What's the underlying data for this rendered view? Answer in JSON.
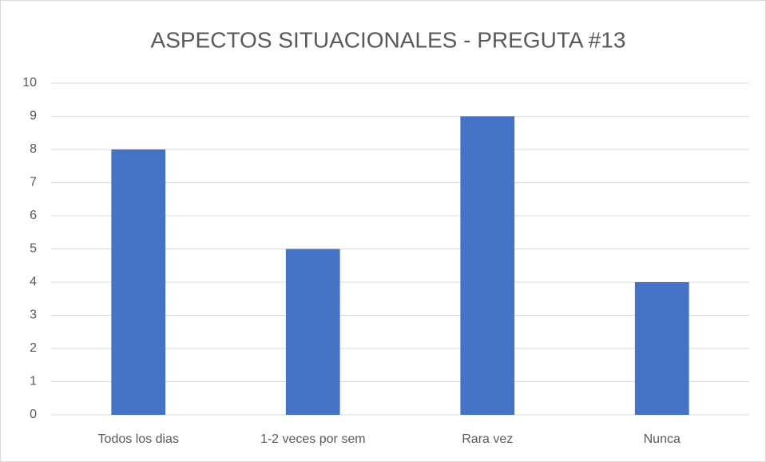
{
  "chart_data": {
    "type": "bar",
    "title": "ASPECTOS SITUACIONALES - PREGUTA #13",
    "categories": [
      "Todos los dias",
      "1-2 veces por sem",
      "Rara vez",
      "Nunca"
    ],
    "values": [
      8,
      5,
      9,
      4
    ],
    "color": "#4472c4",
    "ylim": [
      0,
      10
    ],
    "yticks": [
      0,
      1,
      2,
      3,
      4,
      5,
      6,
      7,
      8,
      9,
      10
    ],
    "grid": true
  }
}
